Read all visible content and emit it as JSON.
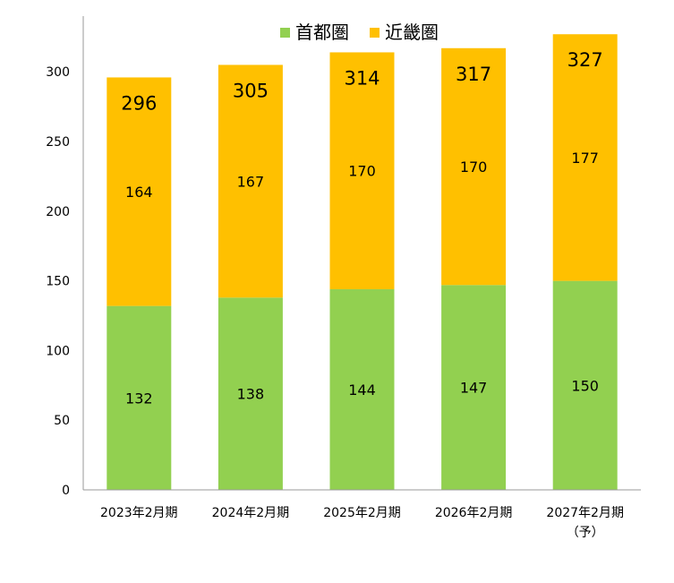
{
  "chart_data": {
    "type": "bar",
    "stacked": true,
    "categories": [
      "2023年2月期",
      "2024年2月期",
      "2025年2月期",
      "2026年2月期",
      "2027年2月期"
    ],
    "category_notes": [
      "",
      "",
      "",
      "",
      "（予）"
    ],
    "series": [
      {
        "name": "首都圏",
        "color": "#92D050",
        "values": [
          132,
          138,
          144,
          147,
          150
        ]
      },
      {
        "name": "近畿圏",
        "color": "#FFC000",
        "values": [
          164,
          167,
          170,
          170,
          177
        ]
      }
    ],
    "totals": [
      296,
      305,
      314,
      317,
      327
    ],
    "ylim": [
      0,
      340
    ],
    "yticks": [
      0,
      50,
      100,
      150,
      200,
      250,
      300
    ],
    "legend_position": "top-center",
    "grid": false
  }
}
